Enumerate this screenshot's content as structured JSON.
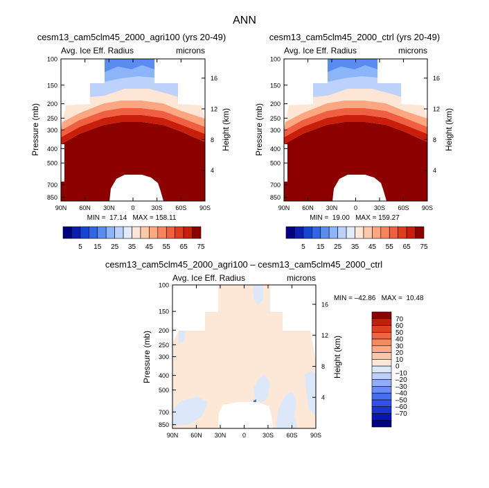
{
  "page_title": "ANN",
  "colors": {
    "abs_scale": [
      "#000080",
      "#0a1eb4",
      "#1446d2",
      "#3264e6",
      "#5a8cf0",
      "#8cb4f8",
      "#bcd2fa",
      "#e0ecfc",
      "#fde6d6",
      "#fcc8aa",
      "#fca682",
      "#f8845e",
      "#f06040",
      "#e23c1e",
      "#c81e0a",
      "#8c0000"
    ],
    "diff_scale": [
      "#000080",
      "#0a14b4",
      "#1e32d2",
      "#3250e6",
      "#466ef0",
      "#6a8cf4",
      "#92acf8",
      "#bcd0fa",
      "#dce8fa",
      "#fde8d8",
      "#fcc8aa",
      "#fcaa88",
      "#f8885e",
      "#f06440",
      "#e0401e",
      "#c0200a",
      "#8c0000"
    ]
  },
  "chart_data": [
    {
      "type": "heatmap",
      "title": "cesm13_cam5clm45_2000_agri100 (yrs 20-49)",
      "variable_label": "Avg. Ice Eff. Radius",
      "units_label": "microns",
      "ylabel": "Pressure (mb)",
      "y2label": "Height (km)",
      "x_ticks": [
        "90N",
        "60N",
        "30N",
        "0",
        "30S",
        "60S",
        "90S"
      ],
      "y_ticks": [
        "100",
        "150",
        "200",
        "250",
        "300",
        "400",
        "500",
        "700",
        "850"
      ],
      "y2_ticks": [
        "16",
        "12",
        "8",
        "4"
      ],
      "stats_text": "MIN =  17.14   MAX = 158.11",
      "min": 17.14,
      "max": 158.11
    },
    {
      "type": "heatmap",
      "title": "cesm13_cam5clm45_2000_ctrl (yrs 20-49)",
      "variable_label": "Avg. Ice Eff. Radius",
      "units_label": "microns",
      "ylabel": "Pressure (mb)",
      "y2label": "Height (km)",
      "x_ticks": [
        "90N",
        "60N",
        "30N",
        "0",
        "30S",
        "60S",
        "90S"
      ],
      "y_ticks": [
        "100",
        "150",
        "200",
        "250",
        "300",
        "400",
        "500",
        "700",
        "850"
      ],
      "y2_ticks": [
        "16",
        "12",
        "8",
        "4"
      ],
      "stats_text": "MIN =  19.00   MAX = 159.27",
      "min": 19.0,
      "max": 159.27
    },
    {
      "type": "heatmap",
      "title": "cesm13_cam5clm45_2000_agri100 – cesm13_cam5clm45_2000_ctrl",
      "variable_label": "Avg. Ice Eff. Radius",
      "units_label": "microns",
      "ylabel": "Pressure (mb)",
      "y2label": "Height (km)",
      "x_ticks": [
        "90N",
        "60N",
        "30N",
        "0",
        "30S",
        "60S",
        "90S"
      ],
      "y_ticks": [
        "100",
        "150",
        "200",
        "250",
        "300",
        "400",
        "500",
        "700",
        "850"
      ],
      "y2_ticks": [
        "16",
        "12",
        "8",
        "4"
      ],
      "stats_text": "MIN = –42.86   MAX =  10.48",
      "min": -42.86,
      "max": 10.48
    }
  ],
  "abs_colorbar_labels": [
    "5",
    "15",
    "25",
    "35",
    "45",
    "55",
    "65",
    "75"
  ],
  "diff_colorbar_labels": [
    "70",
    "60",
    "50",
    "40",
    "30",
    "20",
    "10",
    "0",
    "–10",
    "–20",
    "–30",
    "–40",
    "–50",
    "–60",
    "–70"
  ]
}
